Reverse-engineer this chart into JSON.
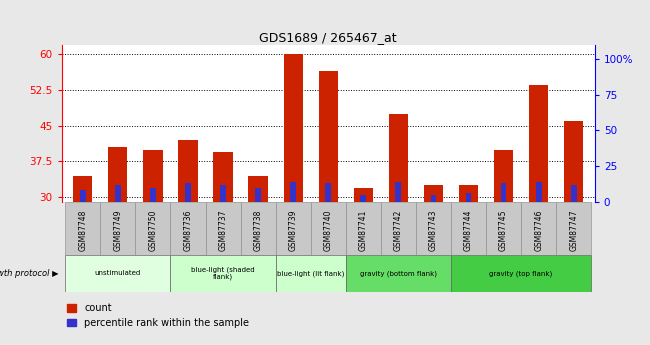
{
  "title": "GDS1689 / 265467_at",
  "samples": [
    "GSM87748",
    "GSM87749",
    "GSM87750",
    "GSM87736",
    "GSM87737",
    "GSM87738",
    "GSM87739",
    "GSM87740",
    "GSM87741",
    "GSM87742",
    "GSM87743",
    "GSM87744",
    "GSM87745",
    "GSM87746",
    "GSM87747"
  ],
  "count_values": [
    34.5,
    40.5,
    40.0,
    42.0,
    39.5,
    34.5,
    60.0,
    56.5,
    32.0,
    47.5,
    32.5,
    32.5,
    40.0,
    53.5,
    46.0
  ],
  "percentile_values": [
    8,
    12,
    10,
    13,
    12,
    10,
    14,
    13,
    5,
    14,
    5,
    6,
    13,
    14,
    12
  ],
  "count_bar_color": "#cc2200",
  "percentile_bar_color": "#3333cc",
  "ylim_left": [
    29,
    62
  ],
  "yticks_left": [
    30,
    37.5,
    45,
    52.5,
    60
  ],
  "ylim_right": [
    0,
    110
  ],
  "yticks_right": [
    0,
    25,
    50,
    75,
    100
  ],
  "yticklabels_right": [
    "0",
    "25",
    "50",
    "75",
    "100%"
  ],
  "groups": [
    {
      "label": "unstimulated",
      "start": 0,
      "end": 3,
      "color": "#e0ffe0"
    },
    {
      "label": "blue-light (shaded\nflank)",
      "start": 3,
      "end": 6,
      "color": "#ccffcc"
    },
    {
      "label": "blue-light (lit flank)",
      "start": 6,
      "end": 8,
      "color": "#ccffcc"
    },
    {
      "label": "gravity (bottom flank)",
      "start": 8,
      "end": 11,
      "color": "#66dd66"
    },
    {
      "label": "gravity (top flank)",
      "start": 11,
      "end": 15,
      "color": "#44cc44"
    }
  ],
  "growth_protocol_label": "growth protocol",
  "legend_count_label": "count",
  "legend_percentile_label": "percentile rank within the sample",
  "background_color": "#e8e8e8",
  "plot_bg_color": "#ffffff",
  "sample_row_color": "#c8c8c8"
}
